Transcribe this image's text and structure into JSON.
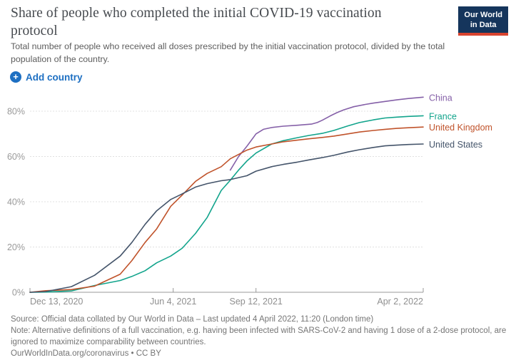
{
  "header": {
    "title": "Share of people who completed the initial COVID-19 vaccination protocol",
    "subtitle": "Total number of people who received all doses prescribed by the initial vaccination protocol, divided by the total population of the country."
  },
  "logo": {
    "line1": "Our World",
    "line2": "in Data",
    "bg_color": "#15355c",
    "bar_color": "#d8432f"
  },
  "controls": {
    "add_country_label": "Add country",
    "accent_color": "#1d6fc2"
  },
  "chart_data": {
    "type": "line",
    "title": "Share of people who completed the initial COVID-19 vaccination protocol",
    "xlabel": "",
    "ylabel": "",
    "y_axis": {
      "unit": "%",
      "ticks": [
        0,
        20,
        40,
        60,
        80
      ],
      "range": [
        0,
        88
      ],
      "grid": "dashed"
    },
    "x_axis": {
      "start_date": "Dec 13, 2020",
      "end_date": "Apr 2, 2022",
      "range_days": [
        0,
        475
      ],
      "ticks": [
        {
          "day": 0,
          "label": "Dec 13, 2020",
          "anchor": "start"
        },
        {
          "day": 173,
          "label": "Jun 4, 2021",
          "anchor": "middle"
        },
        {
          "day": 273,
          "label": "Sep 12, 2021",
          "anchor": "middle"
        },
        {
          "day": 475,
          "label": "Apr 2, 2022",
          "anchor": "end"
        }
      ]
    },
    "legend_position": "right",
    "series": [
      {
        "name": "China",
        "color": "#8560a8",
        "points": [
          [
            242,
            54
          ],
          [
            252,
            60
          ],
          [
            262,
            64.5
          ],
          [
            265,
            66
          ],
          [
            273,
            70
          ],
          [
            282,
            72
          ],
          [
            292,
            72.8
          ],
          [
            306,
            73.4
          ],
          [
            323,
            73.8
          ],
          [
            340,
            74.3
          ],
          [
            347,
            75
          ],
          [
            353,
            76
          ],
          [
            363,
            78
          ],
          [
            371,
            79.4
          ],
          [
            379,
            80.6
          ],
          [
            391,
            82
          ],
          [
            405,
            83
          ],
          [
            415,
            83.6
          ],
          [
            429,
            84.3
          ],
          [
            443,
            85
          ],
          [
            457,
            85.6
          ],
          [
            475,
            86.2
          ]
        ]
      },
      {
        "name": "France",
        "color": "#12a48c",
        "points": [
          [
            0,
            0
          ],
          [
            19,
            0.1
          ],
          [
            50,
            0.6
          ],
          [
            78,
            3
          ],
          [
            109,
            5.2
          ],
          [
            123,
            7
          ],
          [
            139,
            9.5
          ],
          [
            153,
            13
          ],
          [
            170,
            16
          ],
          [
            184,
            19.5
          ],
          [
            200,
            26
          ],
          [
            214,
            33
          ],
          [
            231,
            45
          ],
          [
            242,
            49.5
          ],
          [
            252,
            54
          ],
          [
            262,
            58
          ],
          [
            273,
            61.5
          ],
          [
            292,
            65.5
          ],
          [
            306,
            67
          ],
          [
            323,
            68.3
          ],
          [
            337,
            69.3
          ],
          [
            353,
            70.2
          ],
          [
            367,
            71.5
          ],
          [
            384,
            73.5
          ],
          [
            398,
            75
          ],
          [
            415,
            76.2
          ],
          [
            429,
            77
          ],
          [
            443,
            77.4
          ],
          [
            457,
            77.7
          ],
          [
            475,
            78
          ]
        ]
      },
      {
        "name": "United Kingdom",
        "color": "#c0532b",
        "points": [
          [
            0,
            0
          ],
          [
            19,
            0.7
          ],
          [
            50,
            1.2
          ],
          [
            78,
            2.7
          ],
          [
            109,
            8
          ],
          [
            123,
            14
          ],
          [
            139,
            22
          ],
          [
            153,
            28
          ],
          [
            170,
            38
          ],
          [
            184,
            43
          ],
          [
            200,
            49
          ],
          [
            214,
            52.5
          ],
          [
            231,
            55.5
          ],
          [
            242,
            59
          ],
          [
            262,
            62.8
          ],
          [
            273,
            64.2
          ],
          [
            292,
            65.5
          ],
          [
            306,
            66.5
          ],
          [
            323,
            67.2
          ],
          [
            337,
            67.8
          ],
          [
            353,
            68.4
          ],
          [
            367,
            69
          ],
          [
            384,
            70
          ],
          [
            398,
            70.8
          ],
          [
            415,
            71.5
          ],
          [
            429,
            72
          ],
          [
            443,
            72.4
          ],
          [
            457,
            72.7
          ],
          [
            475,
            73
          ]
        ]
      },
      {
        "name": "United States",
        "color": "#44546a",
        "points": [
          [
            0,
            0
          ],
          [
            19,
            0.3
          ],
          [
            50,
            2.5
          ],
          [
            78,
            7.5
          ],
          [
            109,
            16
          ],
          [
            123,
            22
          ],
          [
            139,
            30
          ],
          [
            153,
            36
          ],
          [
            170,
            41
          ],
          [
            184,
            43.5
          ],
          [
            200,
            46.5
          ],
          [
            214,
            48
          ],
          [
            231,
            49.3
          ],
          [
            242,
            49.8
          ],
          [
            262,
            51.5
          ],
          [
            273,
            53.5
          ],
          [
            292,
            55.5
          ],
          [
            306,
            56.5
          ],
          [
            323,
            57.5
          ],
          [
            337,
            58.5
          ],
          [
            353,
            59.5
          ],
          [
            367,
            60.5
          ],
          [
            384,
            62
          ],
          [
            398,
            63
          ],
          [
            415,
            64
          ],
          [
            429,
            64.7
          ],
          [
            443,
            65
          ],
          [
            457,
            65.3
          ],
          [
            475,
            65.5
          ]
        ]
      }
    ]
  },
  "footer": {
    "source": "Source: Official data collated by Our World in Data – Last updated 4 April 2022, 11:20 (London time)",
    "note": "Note: Alternative definitions of a full vaccination, e.g. having been infected with SARS-CoV-2 and having 1 dose of a 2-dose protocol, are ignored to maximize comparability between countries.",
    "link": "OurWorldInData.org/coronavirus • CC BY"
  }
}
